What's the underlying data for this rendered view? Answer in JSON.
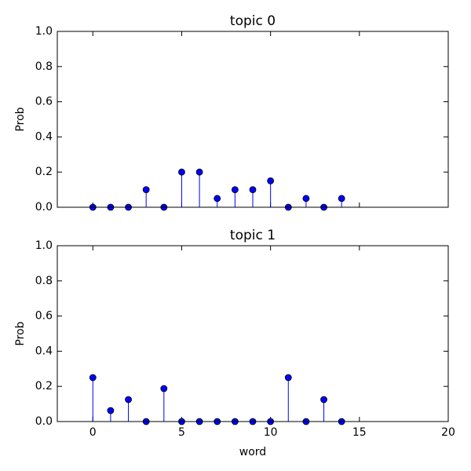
{
  "chart_data": [
    {
      "type": "stem",
      "title": "topic 0",
      "ylabel": "Prob",
      "color": "#0000ff",
      "x": [
        0,
        1,
        2,
        3,
        4,
        5,
        6,
        7,
        8,
        9,
        10,
        11,
        12,
        13,
        14
      ],
      "values": [
        0,
        0,
        0,
        0.1,
        0,
        0.2,
        0.2,
        0.05,
        0.1,
        0.1,
        0.15,
        0,
        0.05,
        0,
        0.05
      ],
      "xlim": [
        -2,
        20
      ],
      "xticks": [
        0,
        5,
        10,
        15,
        20
      ],
      "ylim": [
        0,
        1
      ],
      "yticks": [
        {
          "value": 0,
          "label": "0.0"
        },
        {
          "value": 0.2,
          "label": "0.2"
        },
        {
          "value": 0.4,
          "label": "0.4"
        },
        {
          "value": 0.6,
          "label": "0.6"
        },
        {
          "value": 0.8,
          "label": "0.8"
        },
        {
          "value": 1,
          "label": "1.0"
        }
      ]
    },
    {
      "type": "stem",
      "title": "topic 1",
      "ylabel": "Prob",
      "xlabel": "word",
      "color": "#0000ff",
      "x": [
        0,
        1,
        2,
        3,
        4,
        5,
        6,
        7,
        8,
        9,
        10,
        11,
        12,
        13,
        14
      ],
      "values": [
        0.25,
        0.0625,
        0.125,
        0,
        0.1875,
        0,
        0,
        0,
        0,
        0,
        0,
        0.25,
        0,
        0.125,
        0
      ],
      "xlim": [
        -2,
        20
      ],
      "xticks": [
        0,
        5,
        10,
        15,
        20
      ],
      "ylim": [
        0,
        1
      ],
      "yticks": [
        {
          "value": 0,
          "label": "0.0"
        },
        {
          "value": 0.2,
          "label": "0.2"
        },
        {
          "value": 0.4,
          "label": "0.4"
        },
        {
          "value": 0.6,
          "label": "0.6"
        },
        {
          "value": 0.8,
          "label": "0.8"
        },
        {
          "value": 1,
          "label": "1.0"
        }
      ]
    }
  ]
}
